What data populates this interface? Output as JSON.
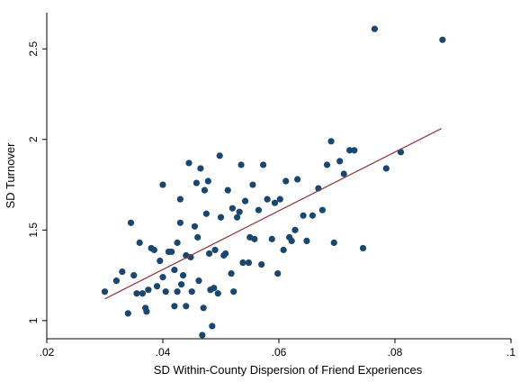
{
  "chart_data": {
    "type": "scatter",
    "xlabel": "SD Within-County Dispersion of Friend Experiences",
    "ylabel": "SD Turnover",
    "xlim": [
      0.02,
      0.1
    ],
    "ylim": [
      0.9,
      2.7
    ],
    "x_ticks": [
      {
        "value": 0.02,
        "label": ".02"
      },
      {
        "value": 0.04,
        "label": ".04"
      },
      {
        "value": 0.06,
        "label": ".06"
      },
      {
        "value": 0.08,
        "label": ".08"
      },
      {
        "value": 0.1,
        "label": ".1"
      }
    ],
    "y_ticks": [
      {
        "value": 1,
        "label": "1"
      },
      {
        "value": 1.5,
        "label": "1.5"
      },
      {
        "value": 2,
        "label": "2"
      },
      {
        "value": 2.5,
        "label": "2.5"
      }
    ],
    "grid": false,
    "marker_color": "#1a476f",
    "fit_line_color": "#90353b",
    "fit_line": {
      "x": [
        0.03,
        0.088
      ],
      "y": [
        1.12,
        2.06
      ]
    },
    "points": [
      {
        "x": 0.03,
        "y": 1.16
      },
      {
        "x": 0.032,
        "y": 1.22
      },
      {
        "x": 0.033,
        "y": 1.27
      },
      {
        "x": 0.034,
        "y": 1.04
      },
      {
        "x": 0.0345,
        "y": 1.54
      },
      {
        "x": 0.035,
        "y": 1.25
      },
      {
        "x": 0.0355,
        "y": 1.15
      },
      {
        "x": 0.036,
        "y": 1.43
      },
      {
        "x": 0.0365,
        "y": 1.15
      },
      {
        "x": 0.037,
        "y": 1.07
      },
      {
        "x": 0.0372,
        "y": 1.05
      },
      {
        "x": 0.0375,
        "y": 1.17
      },
      {
        "x": 0.038,
        "y": 1.4
      },
      {
        "x": 0.0385,
        "y": 1.39
      },
      {
        "x": 0.039,
        "y": 1.19
      },
      {
        "x": 0.0395,
        "y": 1.33
      },
      {
        "x": 0.04,
        "y": 1.24
      },
      {
        "x": 0.04,
        "y": 1.75
      },
      {
        "x": 0.0405,
        "y": 1.16
      },
      {
        "x": 0.041,
        "y": 1.38
      },
      {
        "x": 0.0415,
        "y": 1.38
      },
      {
        "x": 0.042,
        "y": 1.08
      },
      {
        "x": 0.042,
        "y": 1.28
      },
      {
        "x": 0.0425,
        "y": 1.43
      },
      {
        "x": 0.0425,
        "y": 1.16
      },
      {
        "x": 0.043,
        "y": 1.54
      },
      {
        "x": 0.043,
        "y": 1.67
      },
      {
        "x": 0.0432,
        "y": 1.2
      },
      {
        "x": 0.0435,
        "y": 1.25
      },
      {
        "x": 0.044,
        "y": 1.08
      },
      {
        "x": 0.044,
        "y": 1.36
      },
      {
        "x": 0.0445,
        "y": 1.87
      },
      {
        "x": 0.0448,
        "y": 1.35
      },
      {
        "x": 0.045,
        "y": 1.16
      },
      {
        "x": 0.0455,
        "y": 1.52
      },
      {
        "x": 0.0458,
        "y": 1.76
      },
      {
        "x": 0.046,
        "y": 1.46
      },
      {
        "x": 0.0462,
        "y": 1.22
      },
      {
        "x": 0.0465,
        "y": 1.84
      },
      {
        "x": 0.0468,
        "y": 0.92
      },
      {
        "x": 0.047,
        "y": 1.07
      },
      {
        "x": 0.0472,
        "y": 1.72
      },
      {
        "x": 0.0475,
        "y": 1.59
      },
      {
        "x": 0.0478,
        "y": 1.77
      },
      {
        "x": 0.048,
        "y": 1.37
      },
      {
        "x": 0.0482,
        "y": 1.17
      },
      {
        "x": 0.0485,
        "y": 0.97
      },
      {
        "x": 0.0488,
        "y": 1.18
      },
      {
        "x": 0.049,
        "y": 1.39
      },
      {
        "x": 0.0495,
        "y": 1.15
      },
      {
        "x": 0.0498,
        "y": 1.91
      },
      {
        "x": 0.05,
        "y": 1.57
      },
      {
        "x": 0.0505,
        "y": 1.36
      },
      {
        "x": 0.0508,
        "y": 1.37
      },
      {
        "x": 0.0512,
        "y": 1.72
      },
      {
        "x": 0.0518,
        "y": 1.26
      },
      {
        "x": 0.052,
        "y": 1.62
      },
      {
        "x": 0.0522,
        "y": 1.16
      },
      {
        "x": 0.0528,
        "y": 1.57
      },
      {
        "x": 0.0532,
        "y": 1.6
      },
      {
        "x": 0.0535,
        "y": 1.86
      },
      {
        "x": 0.0538,
        "y": 1.32
      },
      {
        "x": 0.0542,
        "y": 1.66
      },
      {
        "x": 0.0548,
        "y": 1.32
      },
      {
        "x": 0.055,
        "y": 1.46
      },
      {
        "x": 0.0555,
        "y": 1.75
      },
      {
        "x": 0.0558,
        "y": 1.45
      },
      {
        "x": 0.0565,
        "y": 1.61
      },
      {
        "x": 0.057,
        "y": 1.31
      },
      {
        "x": 0.0573,
        "y": 1.86
      },
      {
        "x": 0.058,
        "y": 1.67
      },
      {
        "x": 0.0588,
        "y": 1.45
      },
      {
        "x": 0.0593,
        "y": 1.65
      },
      {
        "x": 0.0598,
        "y": 1.26
      },
      {
        "x": 0.0602,
        "y": 1.67
      },
      {
        "x": 0.0608,
        "y": 1.39
      },
      {
        "x": 0.0612,
        "y": 1.77
      },
      {
        "x": 0.0618,
        "y": 1.46
      },
      {
        "x": 0.0622,
        "y": 1.44
      },
      {
        "x": 0.0628,
        "y": 1.5
      },
      {
        "x": 0.0632,
        "y": 1.78
      },
      {
        "x": 0.0642,
        "y": 1.58
      },
      {
        "x": 0.0648,
        "y": 1.44
      },
      {
        "x": 0.0658,
        "y": 1.58
      },
      {
        "x": 0.0668,
        "y": 1.73
      },
      {
        "x": 0.0675,
        "y": 1.61
      },
      {
        "x": 0.0683,
        "y": 1.86
      },
      {
        "x": 0.069,
        "y": 1.99
      },
      {
        "x": 0.0695,
        "y": 1.43
      },
      {
        "x": 0.0705,
        "y": 1.88
      },
      {
        "x": 0.0712,
        "y": 1.81
      },
      {
        "x": 0.0722,
        "y": 1.94
      },
      {
        "x": 0.073,
        "y": 1.94
      },
      {
        "x": 0.0745,
        "y": 1.4
      },
      {
        "x": 0.0765,
        "y": 2.61
      },
      {
        "x": 0.0785,
        "y": 1.84
      },
      {
        "x": 0.081,
        "y": 1.93
      },
      {
        "x": 0.0882,
        "y": 2.55
      }
    ]
  }
}
